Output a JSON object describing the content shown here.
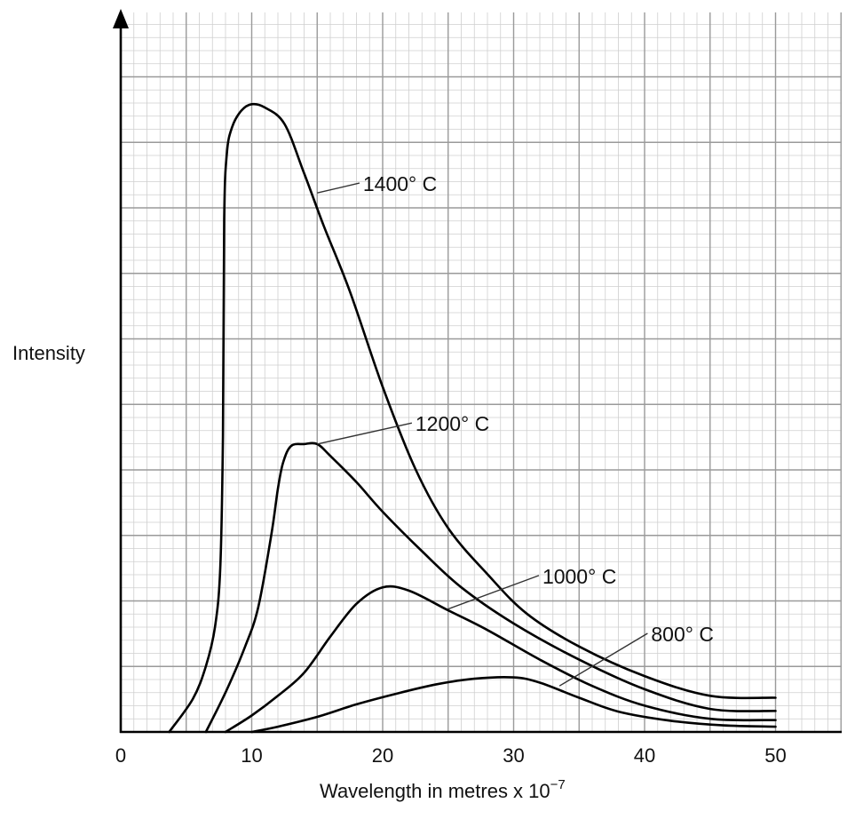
{
  "chart_data": {
    "type": "line",
    "title": "",
    "xlabel": "Wavelength in metres x 10",
    "xlabel_exponent": "−7",
    "ylabel": "Intensity",
    "xlim": [
      0,
      55
    ],
    "ylim": [
      0,
      100
    ],
    "grid": true,
    "x_ticks": [
      0,
      10,
      20,
      30,
      40,
      50
    ],
    "x_tick_labels": [
      "0",
      "10",
      "20",
      "30",
      "40",
      "50"
    ],
    "series": [
      {
        "name": "1400° C",
        "label": "1400° C",
        "x": [
          3.7,
          5.5,
          6.5,
          7.2,
          7.6,
          7.8,
          7.9,
          8.1,
          8.5,
          9.2,
          10.0,
          11.0,
          12.5,
          14.0,
          15.5,
          17.5,
          20.0,
          22.5,
          25.0,
          28.0,
          31.0,
          35.0,
          40.0,
          45.0,
          50.0
        ],
        "y": [
          0,
          5,
          10,
          16,
          25,
          45,
          78,
          88,
          92,
          94.5,
          95.5,
          95,
          92.5,
          85,
          77,
          67,
          52.5,
          40,
          31,
          24,
          18,
          13,
          8.5,
          5.5,
          5.2
        ],
        "label_anchor": [
          15,
          82
        ],
        "label_pos": [
          18.5,
          83.5
        ]
      },
      {
        "name": "1200° C",
        "label": "1200° C",
        "x": [
          6.5,
          8,
          9.5,
          10.5,
          11.5,
          12,
          12.4,
          13,
          14,
          15,
          16,
          18,
          20,
          23,
          26,
          30,
          35,
          40,
          45,
          50
        ],
        "y": [
          0,
          6,
          13,
          19,
          30,
          37,
          41,
          43.5,
          43.8,
          43.8,
          42,
          38,
          33.5,
          27.5,
          22,
          16.5,
          11,
          6.5,
          3.5,
          3.2
        ],
        "label_anchor": [
          15,
          43.8
        ],
        "label_pos": [
          22.5,
          47
        ]
      },
      {
        "name": "1000° C",
        "label": "1000° C",
        "x": [
          8,
          10,
          12,
          14,
          16,
          18,
          20,
          22,
          25,
          28,
          32,
          36,
          40,
          45,
          50
        ],
        "y": [
          0,
          2.5,
          5.5,
          9,
          14.5,
          19.5,
          22,
          21.5,
          18.5,
          15.5,
          11,
          7,
          4,
          2,
          1.8
        ],
        "label_anchor": [
          25,
          18.7
        ],
        "label_pos": [
          32.2,
          23.8
        ]
      },
      {
        "name": "800° C",
        "label": "800° C",
        "x": [
          10,
          12,
          15,
          18,
          21,
          24,
          27,
          30,
          32,
          35,
          38,
          42,
          46,
          50
        ],
        "y": [
          0,
          0.8,
          2.3,
          4.2,
          5.8,
          7.2,
          8.1,
          8.3,
          7.5,
          5.2,
          3.1,
          1.7,
          1,
          0.8
        ],
        "label_anchor": [
          33.5,
          7
        ],
        "label_pos": [
          40.5,
          15
        ]
      }
    ]
  }
}
